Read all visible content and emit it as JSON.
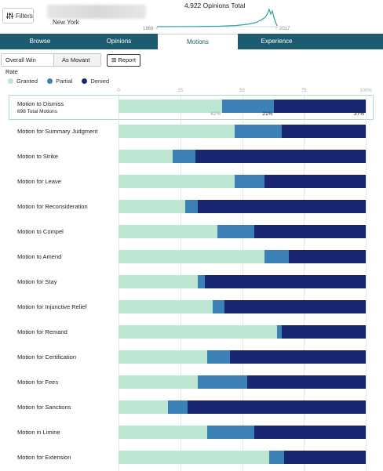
{
  "header": {
    "filters_label": "Filters",
    "location": "New York",
    "opinions_total": "4,922 Opinions Total",
    "spark_start": "1968",
    "spark_end": "2017"
  },
  "tabs": [
    {
      "label": "Browse",
      "active": false
    },
    {
      "label": "Opinions",
      "active": false
    },
    {
      "label": "Motions",
      "active": true
    },
    {
      "label": "Experience",
      "active": false
    }
  ],
  "subtabs": [
    {
      "label": "Overall Win Rate",
      "active": true
    },
    {
      "label": "As Movant",
      "active": false
    }
  ],
  "report_label": "Report",
  "colors": {
    "granted": "#bde6d2",
    "partial": "#3b81b6",
    "denied": "#1b2672",
    "tabbar": "#1d5c70",
    "highlight": "#a8dfc4"
  },
  "legend": [
    {
      "label": "Granted",
      "color": "#bde6d2"
    },
    {
      "label": "Partial",
      "color": "#3b81b6"
    },
    {
      "label": "Denied",
      "color": "#1b2672"
    }
  ],
  "chart_data": {
    "type": "bar",
    "stacked": true,
    "orientation": "horizontal",
    "x_ticks": [
      "0",
      "25",
      "50",
      "75",
      "100%"
    ],
    "xlim": [
      0,
      100
    ],
    "categories": [
      "Motion to Dismiss",
      "Motion for Summary Judgment",
      "Motion to Strike",
      "Motion for Leave",
      "Motion for Reconsideration",
      "Motion to Compel",
      "Motion to Amend",
      "Motion for Stay",
      "Motion for Injunctive Relief",
      "Motion for Remand",
      "Motion for Certification",
      "Motion for Fees",
      "Motion for Sanctions",
      "Motion in Limine",
      "Motion for Extension"
    ],
    "series": [
      {
        "name": "Granted",
        "values": [
          42,
          47,
          22,
          47,
          27,
          40,
          59,
          32,
          38,
          64,
          36,
          32,
          20,
          36,
          61
        ]
      },
      {
        "name": "Partial",
        "values": [
          21,
          19,
          9,
          12,
          5,
          15,
          10,
          3,
          5,
          2,
          9,
          20,
          8,
          19,
          6
        ]
      },
      {
        "name": "Denied",
        "values": [
          37,
          34,
          69,
          41,
          68,
          45,
          31,
          65,
          57,
          34,
          55,
          48,
          72,
          45,
          33
        ]
      }
    ],
    "highlighted": {
      "category": "Motion to Dismiss",
      "total_label": "698 Total Motions",
      "labels": [
        "42%",
        "21%",
        "37%"
      ]
    }
  }
}
